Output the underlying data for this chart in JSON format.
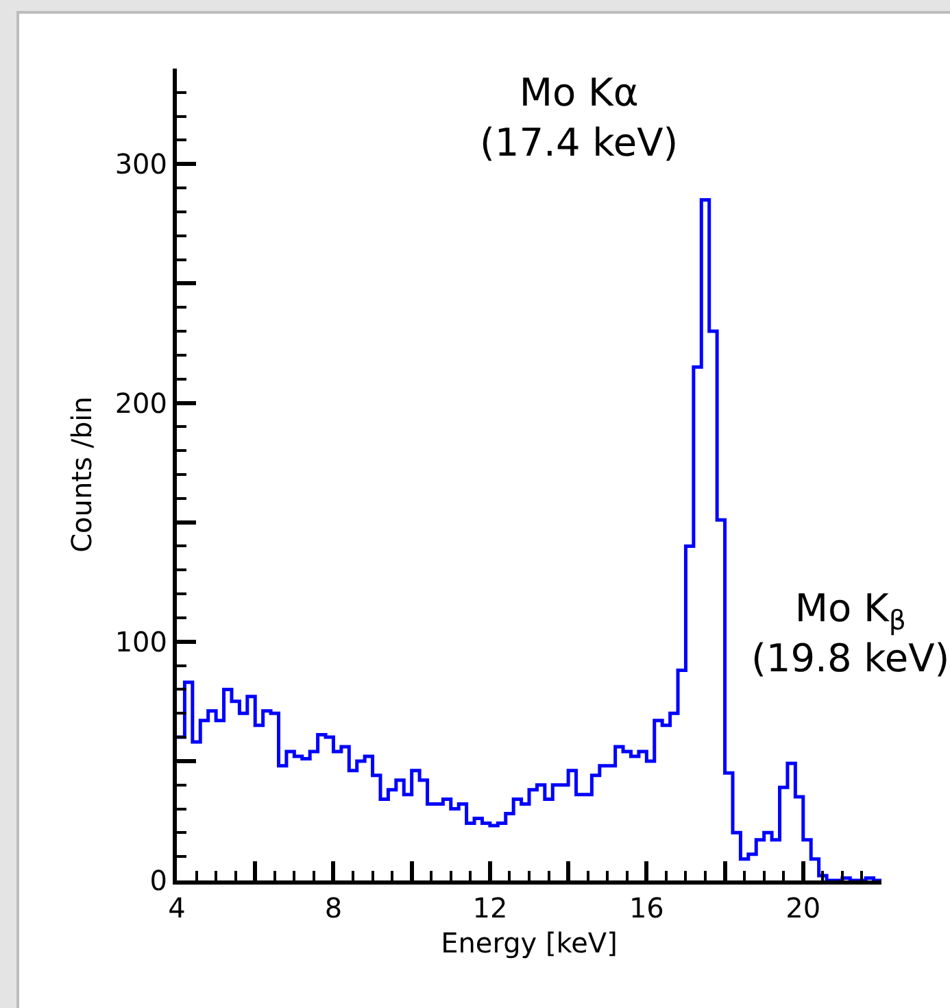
{
  "chart_data": {
    "type": "histogram",
    "xlabel": "Energy [keV]",
    "ylabel": "Counts /bin",
    "color": "#0000ff",
    "bins": [
      4,
      4.2,
      4.4,
      4.6,
      4.8,
      5,
      5.2,
      5.4,
      5.6,
      5.8,
      6,
      6.2,
      6.4,
      6.6,
      6.8,
      7,
      7.2,
      7.4,
      7.6,
      7.8,
      8,
      8.2,
      8.4,
      8.6,
      8.8,
      9,
      9.2,
      9.4,
      9.6,
      9.8,
      10,
      10.2,
      10.4,
      10.6,
      10.8,
      11,
      11.2,
      11.4,
      11.6,
      11.8,
      12,
      12.2,
      12.4,
      12.6,
      12.8,
      13,
      13.2,
      13.4,
      13.6,
      13.8,
      14,
      14.2,
      14.4,
      14.6,
      14.8,
      15,
      15.2,
      15.4,
      15.6,
      15.8,
      16,
      16.2,
      16.4,
      16.6,
      16.8,
      17,
      17.2,
      17.4,
      17.6,
      17.8,
      18,
      18.2,
      18.4,
      18.6,
      18.8,
      19,
      19.2,
      19.4,
      19.6,
      19.8,
      20,
      20.2,
      20.4,
      20.6,
      20.8,
      21,
      21.2,
      21.4,
      21.6,
      21.8,
      22
    ],
    "values": [
      60,
      83,
      58,
      67,
      71,
      67,
      80,
      75,
      70,
      77,
      65,
      71,
      70,
      48,
      54,
      52,
      51,
      54,
      61,
      60,
      54,
      56,
      46,
      50,
      52,
      44,
      34,
      38,
      42,
      36,
      46,
      42,
      32,
      32,
      34,
      30,
      32,
      24,
      26,
      24,
      23,
      24,
      28,
      34,
      32,
      38,
      40,
      34,
      40,
      40,
      46,
      36,
      36,
      44,
      48,
      48,
      56,
      54,
      52,
      54,
      50,
      67,
      65,
      70,
      88,
      140,
      215,
      285,
      230,
      151,
      45,
      20,
      9,
      11,
      17,
      20,
      17,
      39,
      49,
      35,
      17,
      9,
      2,
      0,
      0,
      1,
      0,
      0,
      1,
      0
    ],
    "xlim": [
      4,
      22
    ],
    "xticks": [
      4,
      {
        "value": 6,
        "label": null
      },
      8,
      {
        "value": 10,
        "label": null
      },
      12,
      {
        "value": 14,
        "label": null
      },
      16,
      {
        "value": 18,
        "label": null
      },
      20
    ],
    "ylim": [
      0,
      340
    ],
    "yticks": [
      0,
      {
        "value": 50,
        "label": null
      },
      100,
      {
        "value": 150,
        "label": null
      },
      200,
      {
        "value": 250,
        "label": null
      },
      300
    ],
    "annotations": [
      {
        "text": "Mo Kα\n(17.4 keV)",
        "x": 17.6,
        "y": 285
      },
      {
        "text": "Mo K$_{β}$\n(19.8 keV)",
        "x": 19.8,
        "y": 49
      }
    ]
  }
}
